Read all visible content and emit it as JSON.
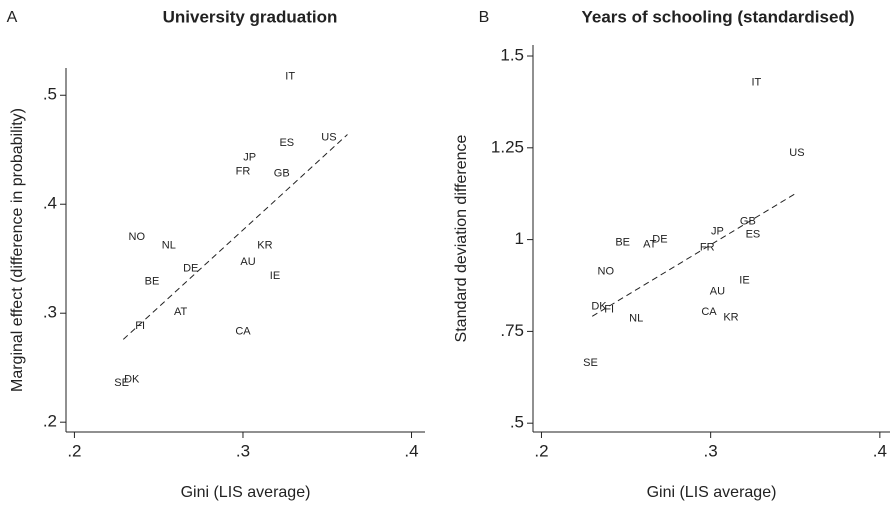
{
  "chart_data": [
    {
      "type": "scatter",
      "panel": "A",
      "title": "University graduation",
      "x_label": "Gini (LIS average)",
      "y_label": "Marginal effect (difference in probability)",
      "labels": [
        "IT",
        "US",
        "ES",
        "JP",
        "FR",
        "GB",
        "NO",
        "NL",
        "KR",
        "DE",
        "AU",
        "IE",
        "BE",
        "AT",
        "FI",
        "CA",
        "DK",
        "SE"
      ],
      "x": [
        0.328,
        0.351,
        0.326,
        0.304,
        0.3,
        0.323,
        0.237,
        0.256,
        0.313,
        0.269,
        0.303,
        0.319,
        0.246,
        0.263,
        0.239,
        0.3,
        0.234,
        0.228
      ],
      "values": [
        0.517,
        0.461,
        0.456,
        0.443,
        0.43,
        0.428,
        0.37,
        0.362,
        0.362,
        0.341,
        0.347,
        0.334,
        0.329,
        0.301,
        0.288,
        0.283,
        0.239,
        0.236
      ],
      "fit": {
        "x": [
          0.229,
          0.362
        ],
        "values": [
          0.276,
          0.464
        ]
      },
      "xlim": [
        0.195,
        0.408
      ],
      "ylim": [
        0.191,
        0.525
      ],
      "xticks": [
        {
          "value": 0.2,
          "label": ".2"
        },
        {
          "value": 0.3,
          "label": ".3"
        },
        {
          "value": 0.4,
          "label": ".4"
        }
      ],
      "yticks": [
        {
          "value": 0.2,
          "label": ".2"
        },
        {
          "value": 0.3,
          "label": ".3"
        },
        {
          "value": 0.4,
          "label": ".4"
        },
        {
          "value": 0.5,
          "label": ".5"
        }
      ]
    },
    {
      "type": "scatter",
      "panel": "B",
      "title": "Years of schooling (standardised)",
      "x_label": "Gini (LIS average)",
      "y_label": "Standard deviation difference",
      "labels": [
        "IT",
        "US",
        "GB",
        "JP",
        "ES",
        "DE",
        "AT",
        "BE",
        "FR",
        "NO",
        "IE",
        "AU",
        "DK",
        "FI",
        "CA",
        "NL",
        "KR",
        "SE"
      ],
      "x": [
        0.327,
        0.351,
        0.322,
        0.304,
        0.325,
        0.27,
        0.264,
        0.248,
        0.298,
        0.238,
        0.32,
        0.304,
        0.234,
        0.24,
        0.299,
        0.256,
        0.312,
        0.229
      ],
      "values": [
        1.427,
        1.236,
        1.049,
        1.022,
        1.014,
        1.0,
        0.986,
        0.992,
        0.978,
        0.913,
        0.889,
        0.859,
        0.818,
        0.81,
        0.802,
        0.785,
        0.788,
        0.663
      ],
      "fit": {
        "x": [
          0.23,
          0.35
        ],
        "values": [
          0.791,
          1.125
        ]
      },
      "xlim": [
        0.195,
        0.406
      ],
      "ylim": [
        0.476,
        1.53
      ],
      "xticks": [
        {
          "value": 0.2,
          "label": ".2"
        },
        {
          "value": 0.3,
          "label": ".3"
        },
        {
          "value": 0.4,
          "label": ".4"
        }
      ],
      "yticks": [
        {
          "value": 0.5,
          "label": ".5"
        },
        {
          "value": 0.75,
          "label": ".75"
        },
        1,
        1.25,
        1.5
      ]
    }
  ]
}
